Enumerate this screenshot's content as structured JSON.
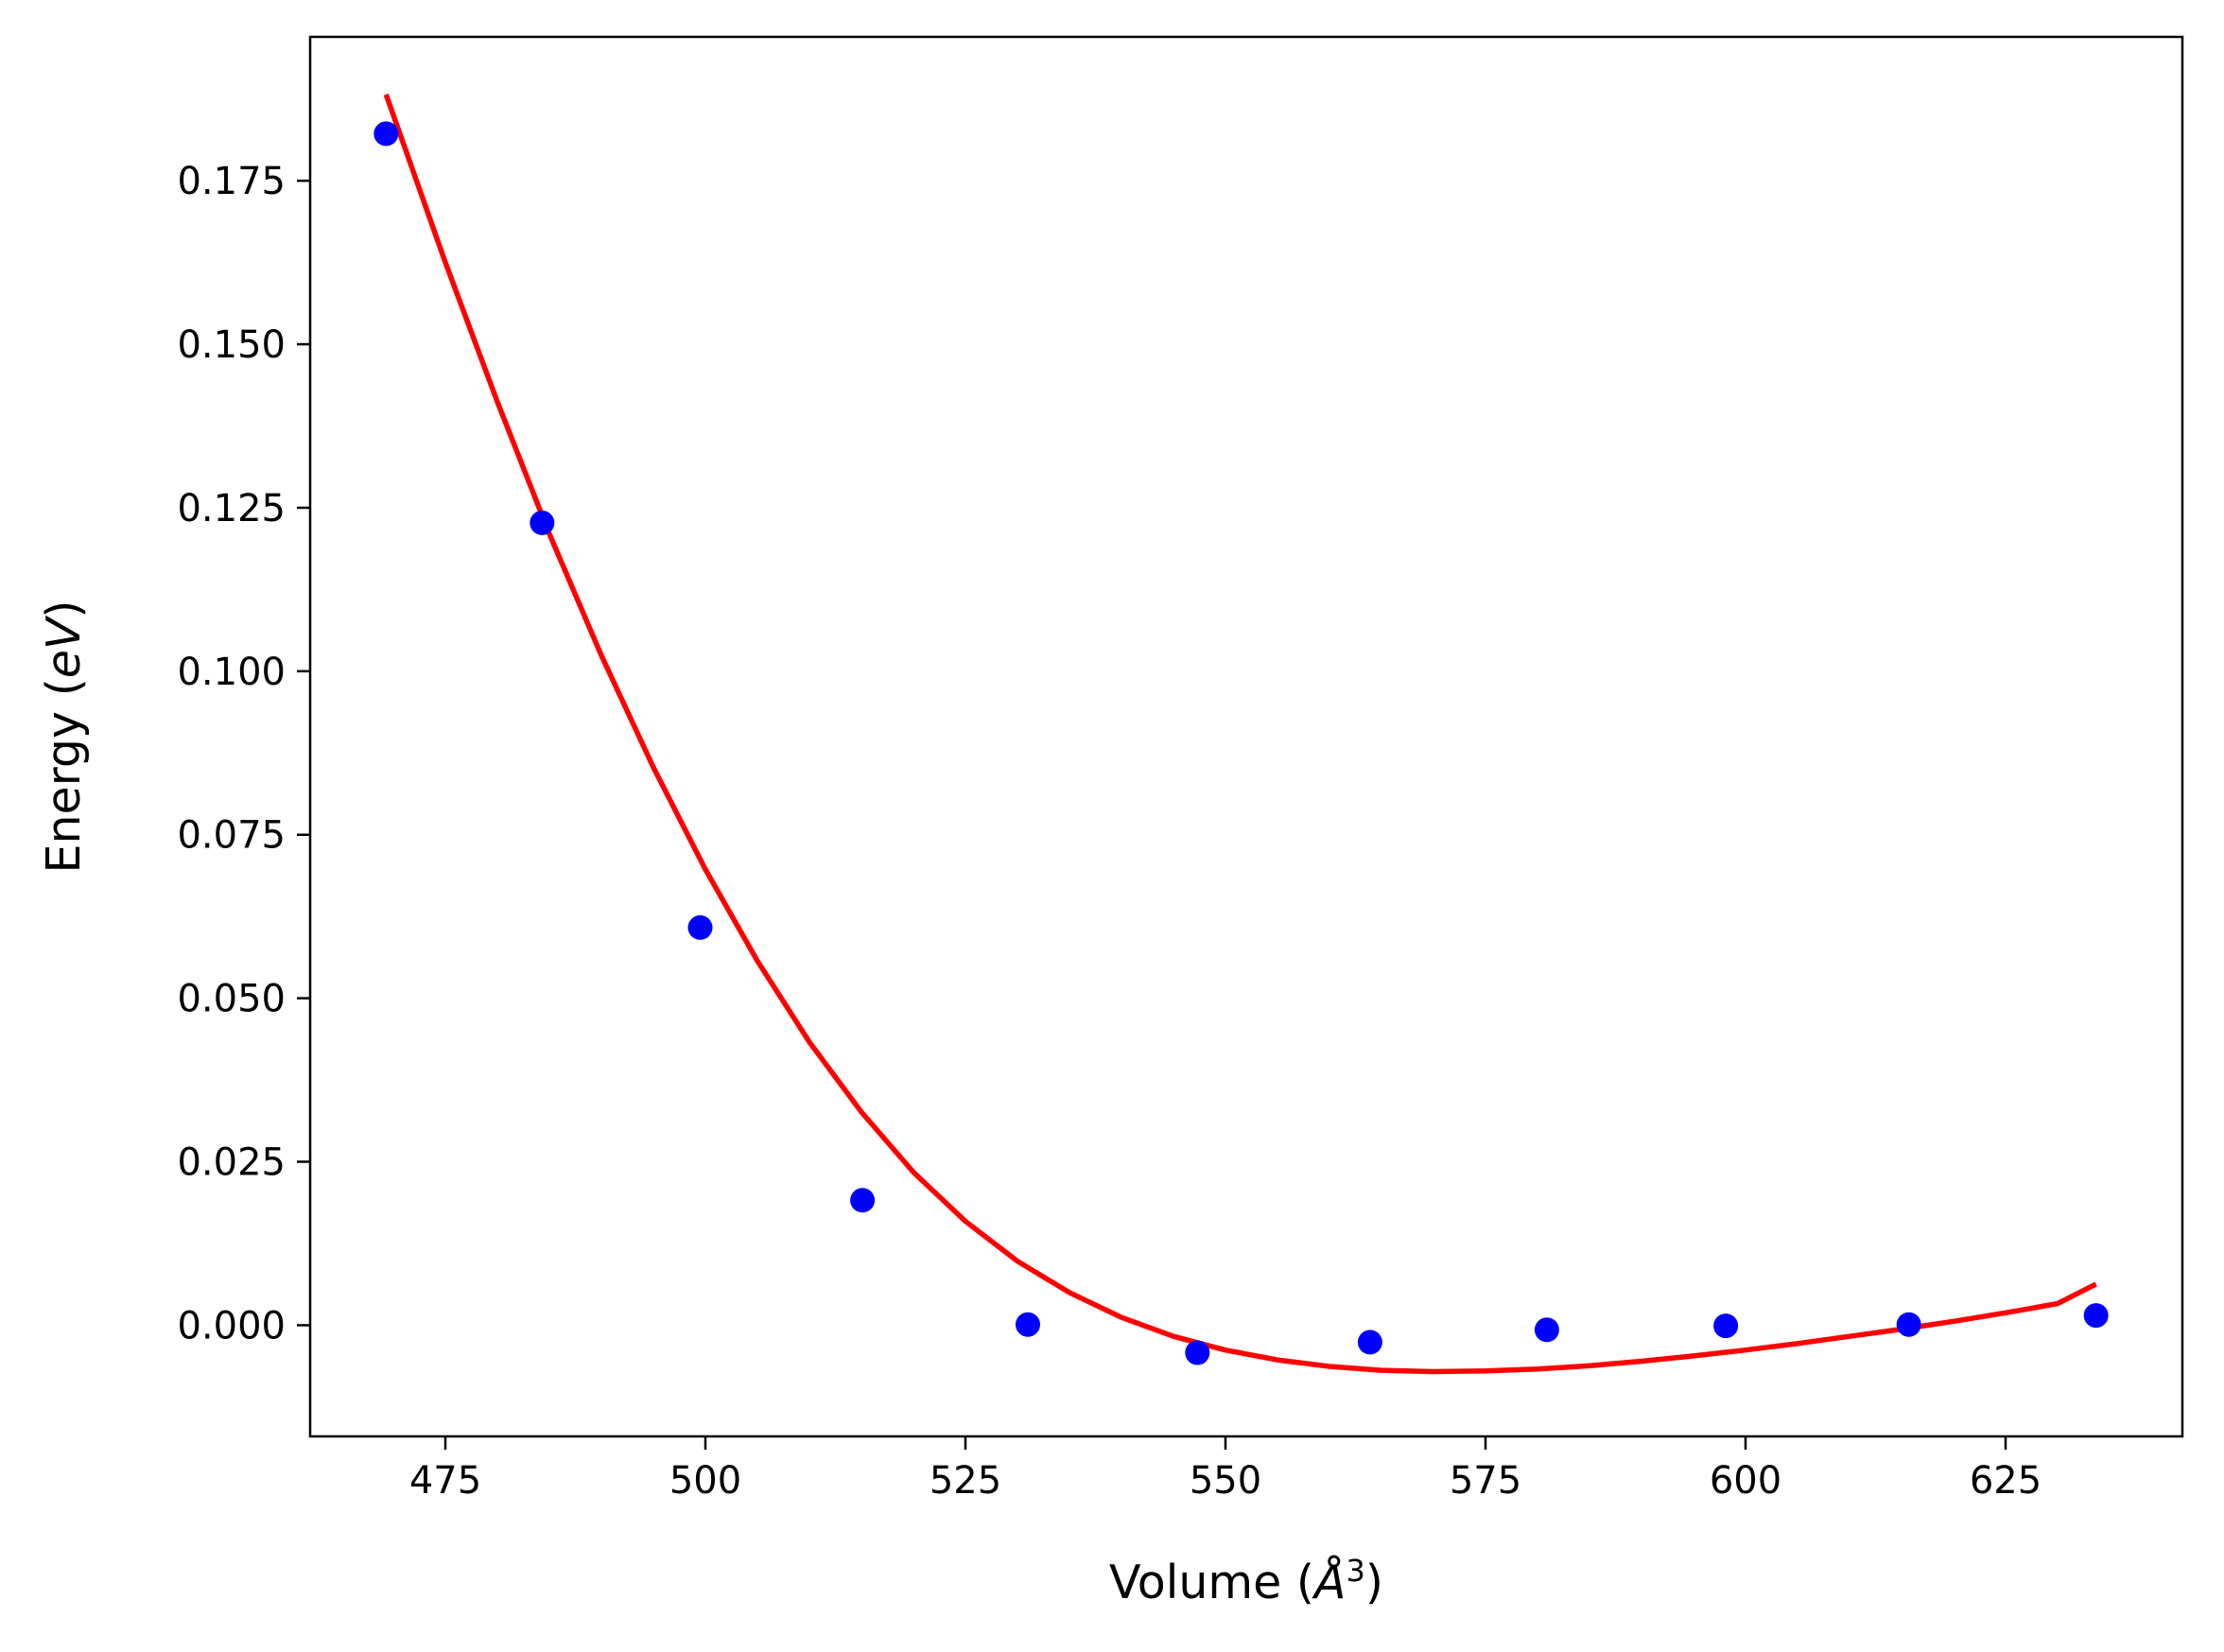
{
  "chart_data": {
    "type": "scatter",
    "title": "",
    "xlabel": "Volume (",
    "xlabel_sym": "Å",
    "xlabel_sup": "3",
    "xlabel_end": ")",
    "ylabel": "Energy (",
    "ylabel_sym": "eV",
    "ylabel_end": ")",
    "xlim": [
      462,
      642
    ],
    "ylim": [
      -0.017,
      0.197
    ],
    "xticks": [
      475,
      500,
      525,
      550,
      575,
      600,
      625
    ],
    "xtick_labels": [
      "475",
      "500",
      "525",
      "550",
      "575",
      "600",
      "625"
    ],
    "yticks": [
      0.0,
      0.025,
      0.05,
      0.075,
      0.1,
      0.125,
      0.15,
      0.175
    ],
    "ytick_labels": [
      "0.000",
      "0.025",
      "0.050",
      "0.075",
      "0.100",
      "0.125",
      "0.150",
      "0.175"
    ],
    "grid": false,
    "series": [
      {
        "kind": "points",
        "color": "#0000ff",
        "x": [
          469.3,
          484.3,
          499.5,
          515.1,
          531.0,
          547.3,
          563.9,
          580.9,
          598.1,
          615.7,
          633.7
        ],
        "y": [
          0.1822,
          0.1227,
          0.0608,
          0.0191,
          0.0001,
          -0.0042,
          -0.0026,
          -0.0007,
          -0.0001,
          0.0001,
          0.0015
        ]
      },
      {
        "kind": "fit-line",
        "color": "#ff0000",
        "x": [
          469.3,
          475,
          480,
          485,
          490,
          495,
          500,
          505,
          510,
          515,
          520,
          525,
          530,
          535,
          540,
          545,
          550,
          555,
          560,
          565,
          570,
          575,
          580,
          585,
          590,
          595,
          600,
          605,
          610,
          615,
          620,
          625,
          630,
          633.7
        ],
        "y": [
          0.1882,
          0.1625,
          0.1412,
          0.121,
          0.1024,
          0.0853,
          0.0697,
          0.0557,
          0.0433,
          0.0326,
          0.0234,
          0.0159,
          0.0098,
          0.005,
          0.0012,
          -0.0017,
          -0.0038,
          -0.0053,
          -0.0063,
          -0.0069,
          -0.0071,
          -0.007,
          -0.0067,
          -0.0062,
          -0.0055,
          -0.0047,
          -0.0038,
          -0.0028,
          -0.0017,
          -0.0006,
          0.0006,
          0.0019,
          0.0033,
          0.0063
        ]
      }
    ]
  }
}
